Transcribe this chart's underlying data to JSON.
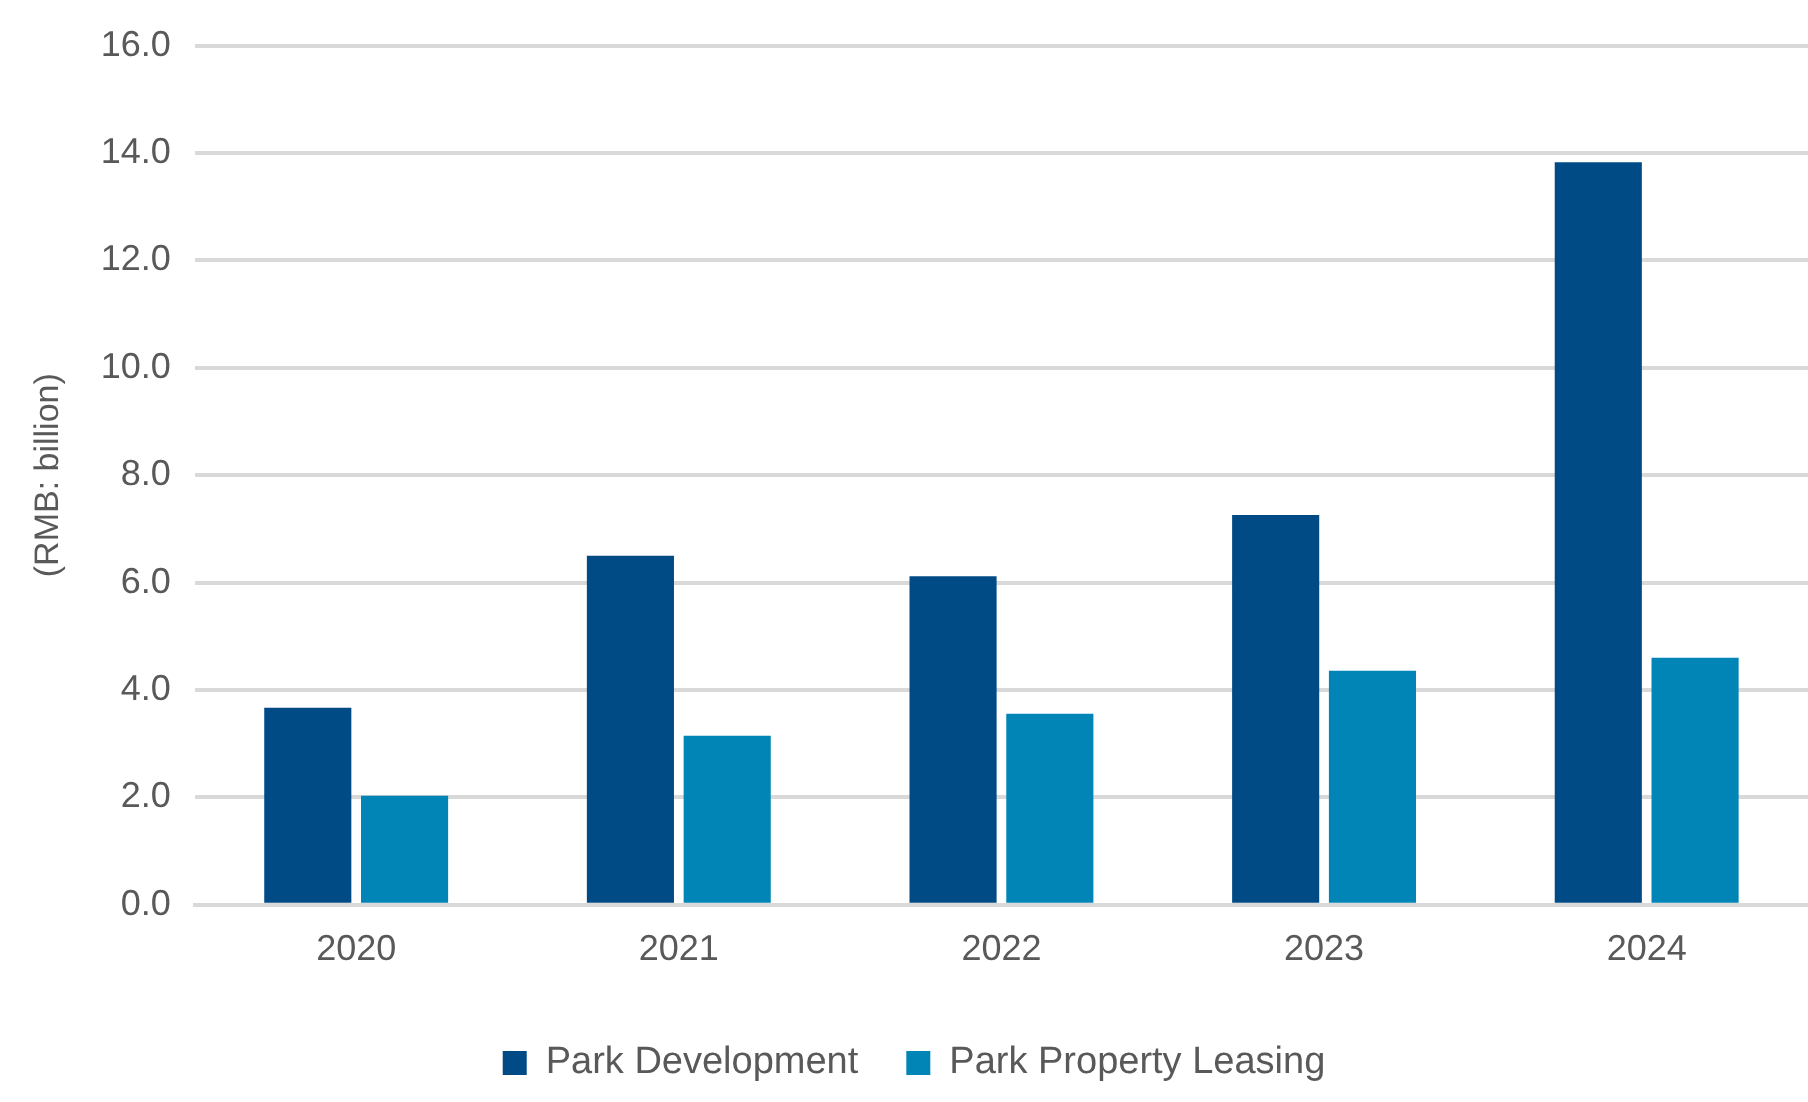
{
  "chart_data": {
    "type": "bar",
    "ylabel": "(RMB: billion)",
    "categories": [
      "2020",
      "2021",
      "2022",
      "2023",
      "2024"
    ],
    "series": [
      {
        "name": "Park Development",
        "color": "#004a85",
        "values": [
          3.67,
          6.5,
          6.12,
          7.26,
          13.83
        ]
      },
      {
        "name": "Park Property Leasing",
        "color": "#0085b6",
        "values": [
          2.03,
          3.15,
          3.56,
          4.36,
          4.6
        ]
      }
    ],
    "ylim": [
      0,
      16
    ],
    "yticks": [
      {
        "value": 0,
        "label": "0.0"
      },
      {
        "value": 2,
        "label": "2.0"
      },
      {
        "value": 4,
        "label": "4.0"
      },
      {
        "value": 6,
        "label": "6.0"
      },
      {
        "value": 8,
        "label": "8.0"
      },
      {
        "value": 10,
        "label": "10.0"
      },
      {
        "value": 12,
        "label": "12.0"
      },
      {
        "value": 14,
        "label": "14.0"
      },
      {
        "value": 16,
        "label": "16.0"
      }
    ],
    "grid": "y",
    "legend": "bottom"
  }
}
